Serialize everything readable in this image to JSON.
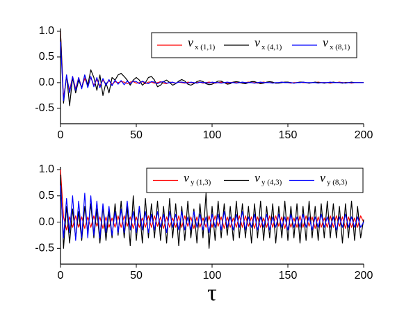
{
  "chart_data": [
    {
      "type": "line",
      "x": [
        0,
        2,
        4,
        6,
        8,
        10,
        12,
        14,
        16,
        18,
        20,
        22,
        24,
        26,
        28,
        30,
        32,
        34,
        36,
        38,
        40,
        42,
        44,
        46,
        48,
        50,
        52,
        54,
        56,
        58,
        60,
        62,
        64,
        66,
        68,
        70,
        72,
        74,
        76,
        78,
        80,
        82,
        84,
        86,
        88,
        90,
        92,
        94,
        96,
        98,
        100,
        102,
        104,
        106,
        108,
        110,
        112,
        114,
        116,
        118,
        120,
        122,
        124,
        126,
        128,
        130,
        132,
        134,
        136,
        138,
        140,
        142,
        144,
        146,
        148,
        150,
        152,
        154,
        156,
        158,
        160,
        162,
        164,
        166,
        168,
        170,
        172,
        174,
        176,
        178,
        180,
        182,
        184,
        186,
        188,
        190,
        192,
        194,
        196,
        198,
        200
      ],
      "xlim": [
        0,
        200
      ],
      "xticks": [
        0,
        50,
        100,
        150,
        200
      ],
      "ylim": [
        -0.8,
        1.0
      ],
      "yticks": [
        {
          "value": 1.0,
          "label": "1.0"
        },
        0.5,
        {
          "value": 0,
          "label": "0.0"
        },
        -0.5
      ],
      "series": [
        {
          "name": "v",
          "subscript": "x (1,1)",
          "color": "#ff0000",
          "values": [
            1.0,
            -0.3,
            0.1,
            -0.15,
            0.12,
            -0.12,
            0.1,
            -0.1,
            0.08,
            -0.06,
            0.1,
            -0.05,
            0.06,
            -0.06,
            0.05,
            -0.04,
            0.04,
            -0.03,
            0.02,
            0.0,
            0.02,
            0.01,
            -0.02,
            0.01,
            0.02,
            -0.01,
            0.0,
            0.02,
            -0.02,
            0.01,
            0.01,
            -0.01,
            0.0,
            0.02,
            -0.01,
            -0.02,
            0.01,
            0.0,
            -0.01,
            0.01,
            0.0,
            -0.01,
            0.01,
            0.0,
            -0.01,
            0.0,
            0.01,
            -0.01,
            0.0,
            0.01,
            0.0,
            -0.01,
            0.0,
            0.01,
            0.0,
            -0.01,
            0.0,
            0.01,
            0.0,
            0.0,
            -0.01,
            0.0,
            0.01,
            0.0,
            0.0,
            -0.01,
            0.0,
            0.01,
            0.0,
            0.0,
            0.0,
            -0.01,
            0.0,
            0.01,
            0.0,
            0.0,
            -0.01,
            0.0,
            0.0,
            0.01,
            0.0,
            0.0,
            -0.01,
            0.0,
            0.0,
            0.01,
            0.0,
            0.0,
            0.0,
            -0.01,
            0.0,
            0.0,
            0.01,
            0.0,
            0.0,
            0.0,
            -0.01,
            0.0,
            0.0,
            0.0,
            0.0
          ]
        },
        {
          "name": "v",
          "subscript": "x (4,1)",
          "color": "#000000",
          "values": [
            1.0,
            -0.4,
            0.15,
            -0.45,
            0.1,
            -0.2,
            0.05,
            -0.1,
            0.15,
            -0.05,
            0.25,
            0.1,
            -0.15,
            0.15,
            -0.25,
            0.0,
            -0.2,
            0.1,
            0.05,
            0.15,
            0.18,
            0.12,
            0.05,
            -0.05,
            0.05,
            0.1,
            0.05,
            -0.05,
            0.0,
            0.1,
            0.12,
            0.05,
            -0.08,
            -0.05,
            0.02,
            0.05,
            0.0,
            -0.05,
            -0.02,
            0.03,
            0.06,
            0.03,
            -0.03,
            -0.05,
            -0.02,
            0.02,
            0.04,
            0.02,
            -0.02,
            -0.04,
            -0.03,
            0.0,
            0.03,
            0.03,
            0.0,
            -0.03,
            -0.02,
            0.01,
            0.02,
            0.01,
            -0.01,
            -0.02,
            0.0,
            0.02,
            0.02,
            0.0,
            -0.02,
            -0.01,
            0.01,
            0.02,
            0.01,
            -0.01,
            -0.01,
            0.0,
            0.01,
            0.01,
            0.0,
            -0.01,
            0.0,
            0.01,
            0.01,
            0.0,
            -0.01,
            0.0,
            0.01,
            0.0,
            0.0,
            -0.01,
            0.0,
            0.0,
            0.01,
            0.0,
            0.0,
            -0.01,
            0.0,
            0.0,
            0.01,
            0.0,
            0.0,
            0.0,
            0.0
          ]
        },
        {
          "name": "v",
          "subscript": "x (8,1)",
          "color": "#0000ff",
          "values": [
            0.8,
            -0.35,
            0.15,
            -0.2,
            0.12,
            -0.15,
            0.1,
            -0.12,
            0.15,
            -0.1,
            0.12,
            -0.08,
            0.1,
            -0.1,
            0.08,
            -0.05,
            0.06,
            -0.06,
            0.05,
            -0.03,
            0.04,
            -0.04,
            0.03,
            -0.02,
            0.03,
            0.02,
            -0.02,
            0.03,
            0.0,
            -0.02,
            0.02,
            0.01,
            -0.02,
            0.01,
            0.02,
            -0.01,
            0.0,
            0.01,
            -0.01,
            0.01,
            0.01,
            0.0,
            -0.01,
            0.01,
            0.0,
            -0.01,
            0.01,
            0.0,
            0.0,
            -0.01,
            0.01,
            0.0,
            0.0,
            -0.01,
            0.0,
            0.01,
            0.0,
            0.0,
            -0.01,
            0.0,
            0.01,
            0.0,
            0.0,
            0.0,
            -0.01,
            0.0,
            0.01,
            0.0,
            0.0,
            0.0,
            -0.01,
            0.0,
            0.0,
            0.01,
            0.0,
            0.0,
            0.0,
            -0.01,
            0.0,
            0.0,
            0.01,
            0.0,
            0.0,
            0.0,
            0.0,
            -0.01,
            0.0,
            0.0,
            0.0,
            0.01,
            0.0,
            0.0,
            0.0,
            0.0,
            -0.01,
            0.0,
            0.0,
            0.0,
            0.0,
            0.0,
            0.0
          ]
        }
      ]
    },
    {
      "type": "line",
      "x": [
        0,
        2,
        4,
        6,
        8,
        10,
        12,
        14,
        16,
        18,
        20,
        22,
        24,
        26,
        28,
        30,
        32,
        34,
        36,
        38,
        40,
        42,
        44,
        46,
        48,
        50,
        52,
        54,
        56,
        58,
        60,
        62,
        64,
        66,
        68,
        70,
        72,
        74,
        76,
        78,
        80,
        82,
        84,
        86,
        88,
        90,
        92,
        94,
        96,
        98,
        100,
        102,
        104,
        106,
        108,
        110,
        112,
        114,
        116,
        118,
        120,
        122,
        124,
        126,
        128,
        130,
        132,
        134,
        136,
        138,
        140,
        142,
        144,
        146,
        148,
        150,
        152,
        154,
        156,
        158,
        160,
        162,
        164,
        166,
        168,
        170,
        172,
        174,
        176,
        178,
        180,
        182,
        184,
        186,
        188,
        190,
        192,
        194,
        196,
        198,
        200
      ],
      "xlim": [
        0,
        200
      ],
      "xticks": [
        0,
        50,
        100,
        150,
        200
      ],
      "ylim": [
        -0.8,
        1.0
      ],
      "yticks": [
        {
          "value": 1.0,
          "label": "1.0"
        },
        0.5,
        {
          "value": 0,
          "label": "0.0"
        },
        -0.5
      ],
      "x_label": "τ",
      "series": [
        {
          "name": "v",
          "subscript": "y (1,3)",
          "color": "#ff0000",
          "values": [
            1.0,
            0.1,
            -0.15,
            0.1,
            -0.1,
            0.12,
            -0.1,
            0.1,
            -0.12,
            0.1,
            -0.1,
            0.12,
            -0.08,
            0.1,
            -0.12,
            0.1,
            -0.1,
            0.08,
            -0.1,
            0.12,
            -0.1,
            0.12,
            -0.08,
            0.1,
            -0.12,
            0.1,
            -0.1,
            0.08,
            -0.1,
            0.12,
            -0.1,
            0.12,
            -0.08,
            0.1,
            -0.12,
            0.1,
            -0.1,
            0.08,
            -0.1,
            0.12,
            -0.1,
            0.12,
            -0.08,
            0.1,
            -0.12,
            0.1,
            -0.1,
            0.08,
            -0.1,
            0.12,
            -0.1,
            0.12,
            -0.08,
            0.1,
            -0.12,
            0.1,
            -0.1,
            0.08,
            -0.1,
            0.12,
            -0.1,
            0.12,
            -0.08,
            0.1,
            -0.12,
            0.1,
            -0.1,
            0.08,
            -0.1,
            0.12,
            -0.1,
            0.12,
            -0.08,
            0.1,
            -0.12,
            0.1,
            -0.1,
            0.08,
            -0.1,
            0.12,
            -0.1,
            0.12,
            -0.08,
            0.1,
            -0.12,
            0.1,
            -0.1,
            0.08,
            -0.1,
            0.12,
            -0.1,
            0.12,
            -0.08,
            0.1,
            -0.12,
            0.1,
            -0.1,
            0.08,
            -0.1,
            0.12,
            0.0
          ]
        },
        {
          "name": "v",
          "subscript": "y (4,3)",
          "color": "#000000",
          "values": [
            0.9,
            -0.5,
            0.3,
            -0.4,
            0.25,
            -0.3,
            0.2,
            -0.35,
            0.3,
            -0.2,
            0.35,
            -0.3,
            0.25,
            -0.4,
            0.3,
            -0.35,
            0.2,
            -0.3,
            0.35,
            -0.25,
            0.4,
            -0.3,
            0.3,
            -0.45,
            0.5,
            -0.35,
            0.3,
            -0.4,
            0.45,
            -0.3,
            0.35,
            -0.3,
            0.4,
            -0.35,
            0.3,
            -0.4,
            0.45,
            -0.3,
            0.35,
            -0.45,
            0.3,
            -0.35,
            0.4,
            -0.3,
            0.25,
            -0.4,
            0.35,
            -0.3,
            0.55,
            -0.5,
            0.3,
            -0.35,
            0.4,
            -0.3,
            0.35,
            -0.25,
            0.3,
            -0.35,
            0.4,
            -0.3,
            0.35,
            -0.3,
            0.3,
            -0.4,
            0.35,
            -0.3,
            0.4,
            -0.35,
            0.3,
            -0.3,
            0.35,
            -0.4,
            0.3,
            -0.3,
            0.4,
            -0.35,
            0.3,
            -0.3,
            0.35,
            -0.4,
            0.3,
            -0.35,
            0.4,
            -0.3,
            0.3,
            -0.35,
            0.35,
            -0.3,
            0.4,
            -0.3,
            0.35,
            -0.3,
            0.3,
            -0.4,
            0.35,
            -0.3,
            0.4,
            -0.35,
            0.3,
            -0.3,
            0.05
          ]
        },
        {
          "name": "v",
          "subscript": "y (8,3)",
          "color": "#0000ff",
          "values": [
            0.7,
            -0.3,
            0.45,
            -0.2,
            0.5,
            -0.35,
            0.4,
            -0.3,
            0.55,
            -0.3,
            0.5,
            -0.25,
            0.4,
            -0.3,
            0.35,
            -0.2,
            0.3,
            -0.25,
            0.2,
            -0.2,
            0.25,
            -0.2,
            0.4,
            -0.15,
            0.2,
            -0.2,
            0.3,
            -0.15,
            0.2,
            -0.2,
            0.15,
            -0.15,
            0.2,
            -0.1,
            0.15,
            -0.2,
            0.2,
            -0.1,
            0.15,
            -0.15,
            0.2,
            -0.15,
            0.1,
            -0.15,
            0.2,
            -0.1,
            0.15,
            -0.15,
            0.1,
            -0.2,
            0.15,
            -0.1,
            0.15,
            -0.15,
            0.2,
            -0.1,
            0.1,
            -0.15,
            0.15,
            -0.1,
            0.2,
            -0.15,
            0.1,
            -0.1,
            0.15,
            -0.15,
            0.1,
            -0.1,
            0.15,
            -0.15,
            0.1,
            -0.1,
            0.15,
            -0.1,
            0.1,
            -0.15,
            0.15,
            -0.1,
            0.1,
            -0.1,
            0.15,
            -0.1,
            0.1,
            -0.15,
            0.1,
            -0.1,
            0.15,
            -0.1,
            0.1,
            -0.1,
            0.1,
            -0.15,
            0.1,
            -0.1,
            0.15,
            -0.1,
            0.1,
            -0.1,
            0.1,
            -0.1,
            0.0
          ]
        }
      ]
    }
  ]
}
